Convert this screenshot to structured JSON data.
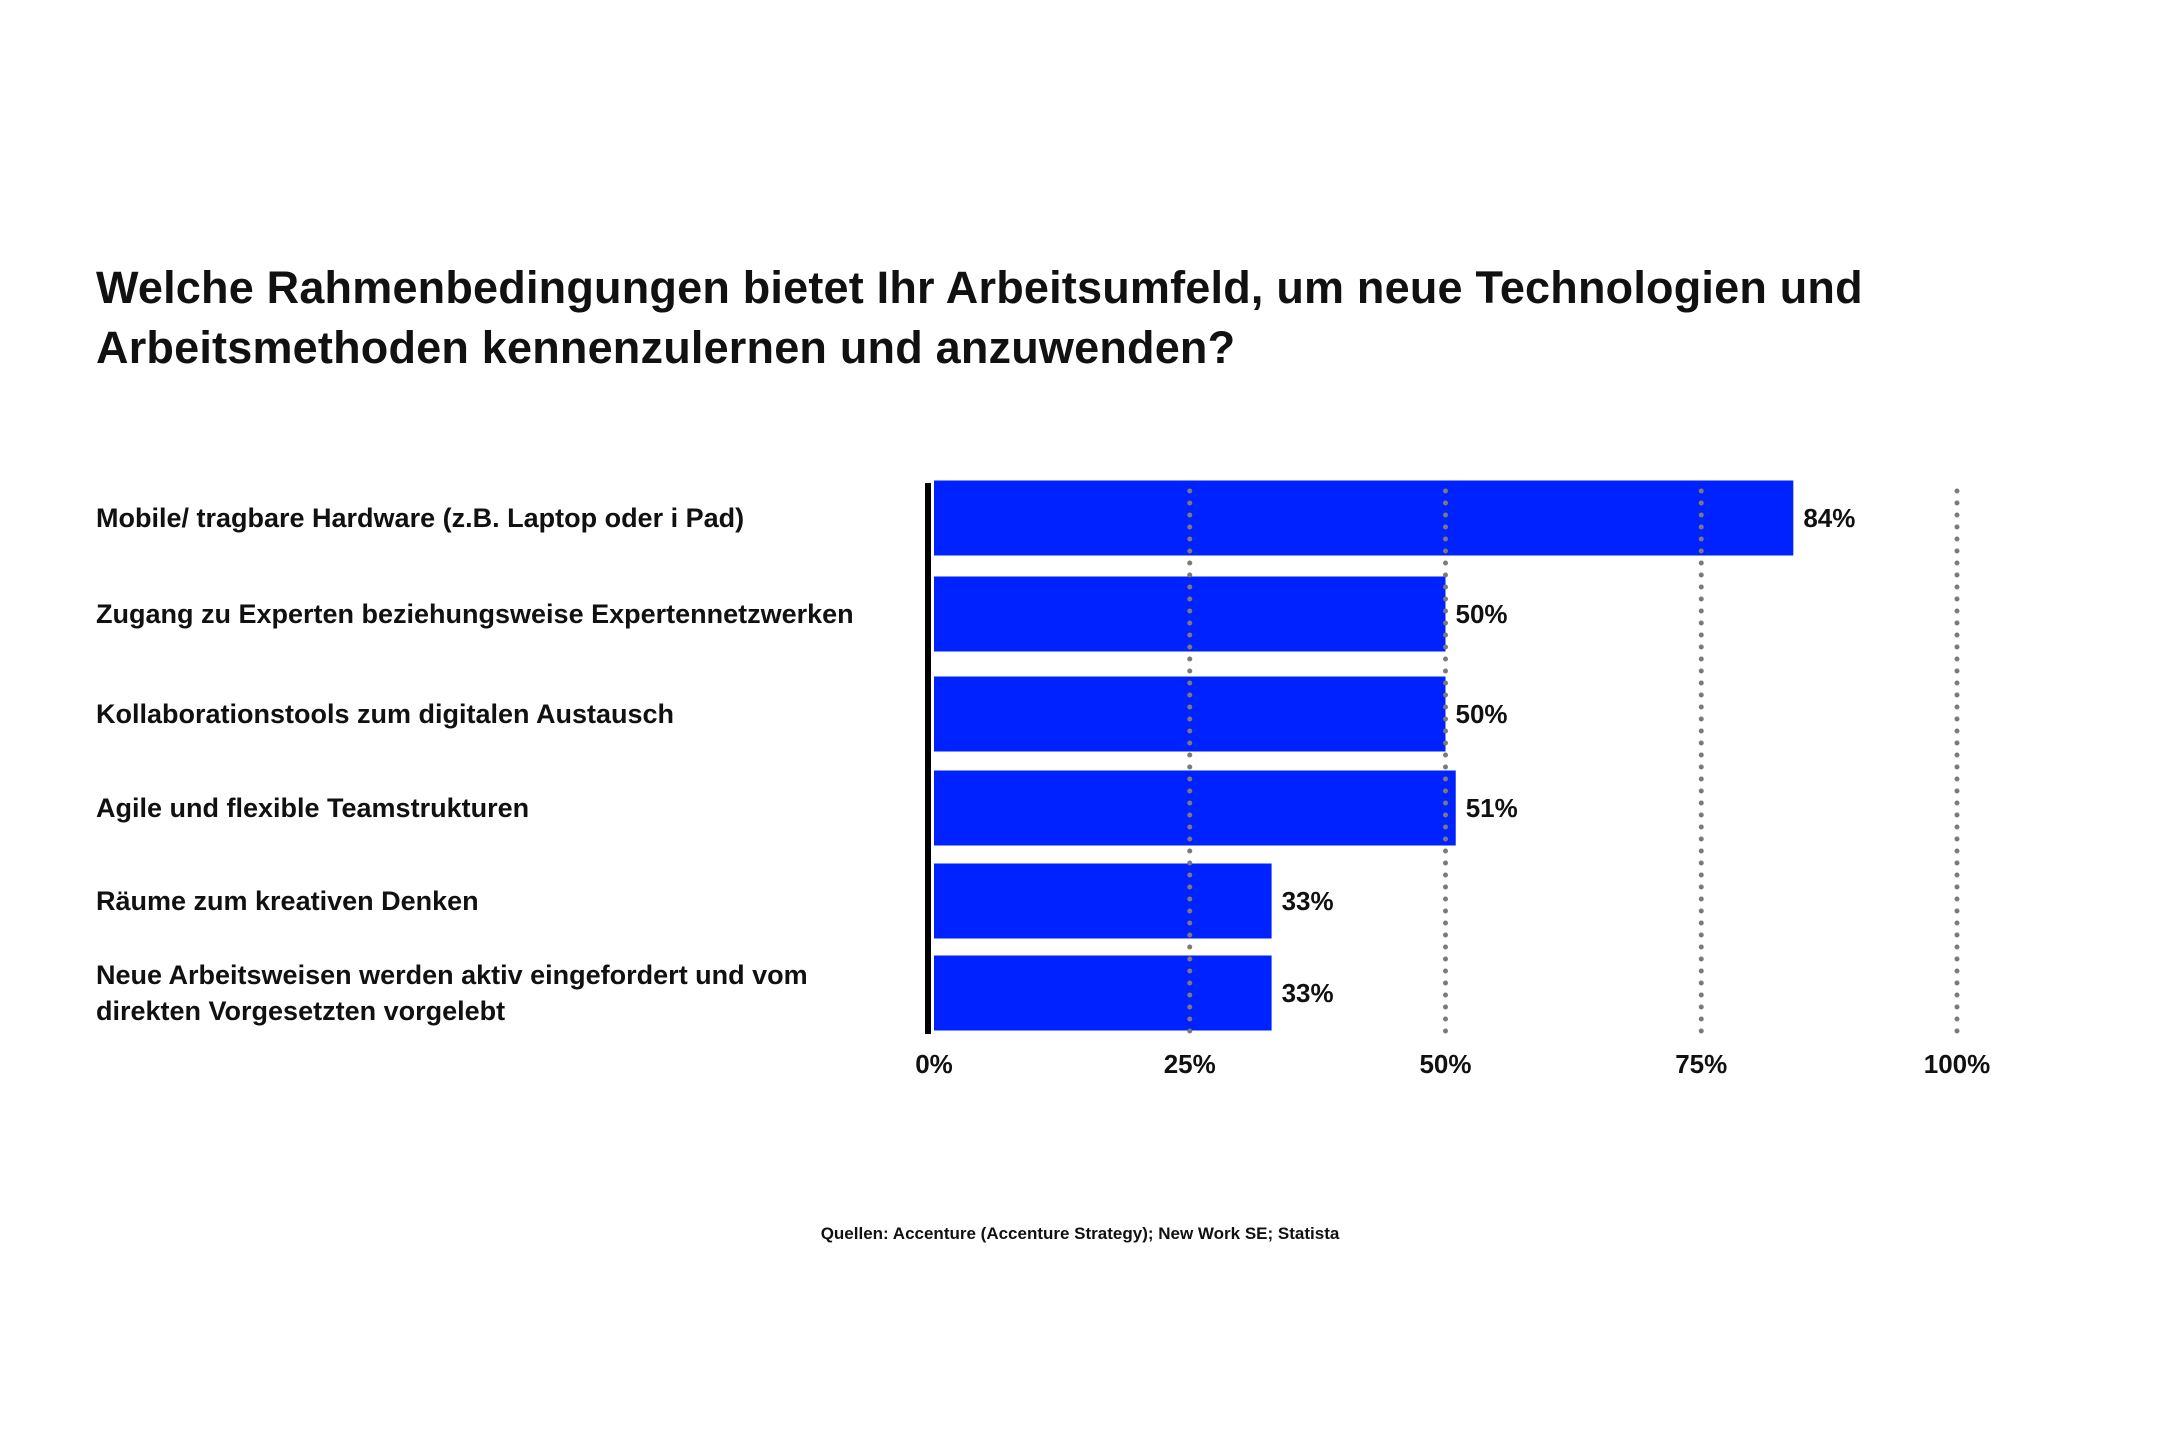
{
  "chart_data": {
    "type": "bar",
    "orientation": "horizontal",
    "title": "Welche Rahmenbedingungen bietet Ihr Arbeitsumfeld, um neue Technologien und Arbeitsmethoden kennenzulernen und anzuwenden?",
    "categories": [
      "Mobile/ tragbare Hardware (z.B. Laptop oder i Pad)",
      "Zugang zu Experten beziehungsweise Expertennetzwerken",
      "Kollaborationstools zum digitalen Austausch",
      "Agile und flexible Teamstrukturen",
      "Räume zum kreativen Denken",
      "Neue Arbeitsweisen werden aktiv eingefordert und vom direkten Vorgesetzten vorgelebt"
    ],
    "values": [
      84,
      50,
      50,
      51,
      33,
      33
    ],
    "data_labels": [
      "84%",
      "50%",
      "50%",
      "51%",
      "33%",
      "33%"
    ],
    "xlim": [
      0,
      100
    ],
    "x_ticks": [
      0,
      25,
      50,
      75,
      100
    ],
    "x_tick_labels": [
      "0%",
      "25%",
      "50%",
      "75%",
      "100%"
    ],
    "grid": "dotted vertical lines",
    "bar_color": "#0022ff",
    "source": "Quellen: Accenture (Accenture Strategy); New Work SE; Statista"
  }
}
